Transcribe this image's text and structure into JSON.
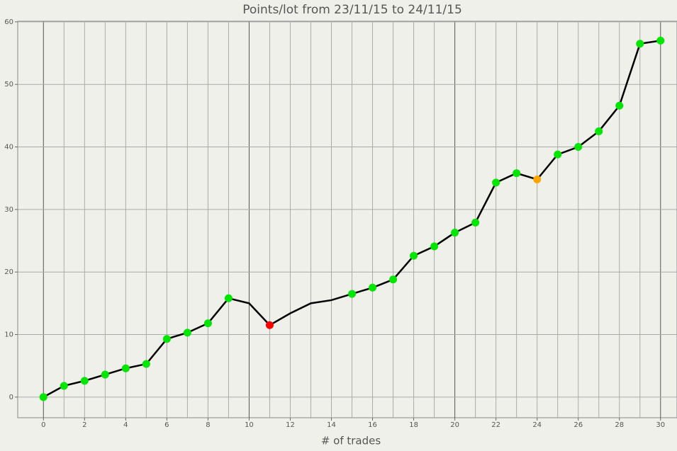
{
  "chart_data": {
    "type": "line",
    "title": "Points/lot from 23/11/15 to 24/11/15",
    "x_label": "# of trades",
    "x": [
      0,
      1,
      2,
      3,
      4,
      5,
      6,
      7,
      8,
      9,
      10,
      11,
      12,
      13,
      14,
      15,
      16,
      17,
      18,
      19,
      20,
      21,
      22,
      23,
      24,
      25,
      26,
      27,
      28,
      29,
      30
    ],
    "series": [
      {
        "color": "#000000",
        "values": [
          0,
          1.8,
          2.6,
          3.6,
          4.6,
          5.3,
          9.3,
          10.3,
          11.8,
          15.8,
          15.0,
          11.5,
          13.4,
          15.0,
          15.5,
          16.5,
          17.5,
          18.8,
          22.6,
          24.1,
          26.3,
          27.9,
          34.3,
          35.8,
          34.8,
          38.8,
          40.0,
          42.5,
          46.6,
          56.5,
          57.0
        ],
        "marker_colors": [
          "#00e600",
          "#00e600",
          "#00e600",
          "#00e600",
          "#00e600",
          "#00e600",
          "#00e600",
          "#00e600",
          "#00e600",
          "#00e600",
          null,
          "#ff0000",
          null,
          null,
          null,
          "#00e600",
          "#00e600",
          "#00e600",
          "#00e600",
          "#00e600",
          "#00e600",
          "#00e600",
          "#00e600",
          "#00e600",
          "#ffa500",
          "#00e600",
          "#00e600",
          "#00e600",
          "#00e600",
          "#00e600",
          "#00e600"
        ]
      }
    ],
    "xlim": [
      -1.25,
      30.8
    ],
    "ylim": [
      -3.3,
      60.1
    ],
    "xticks": [
      0,
      2,
      4,
      6,
      8,
      10,
      12,
      14,
      16,
      18,
      20,
      22,
      24,
      26,
      28,
      30
    ],
    "x_minor_grid": [
      1,
      3,
      5,
      7,
      9,
      11,
      13,
      15,
      17,
      19,
      21,
      23,
      25,
      27,
      29
    ],
    "yticks": [
      0,
      10,
      20,
      30,
      40,
      50,
      60
    ],
    "grid": true
  }
}
